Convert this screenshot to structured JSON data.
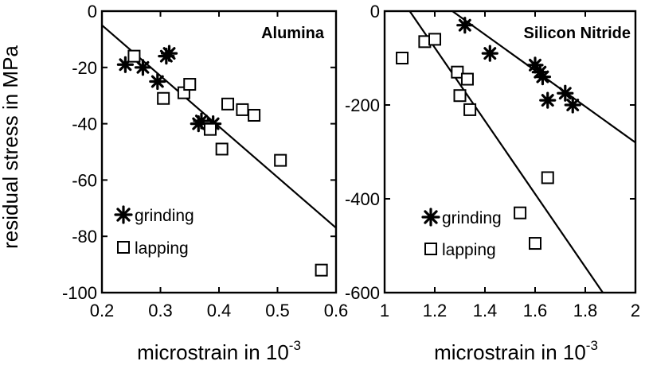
{
  "figure": {
    "ylabel": "residual stress in MPa",
    "xlabel_main": "microstrain in 10",
    "xlabel_exp": "-3"
  },
  "chart_data": [
    {
      "type": "scatter",
      "title": "Alumina",
      "xlabel": "microstrain in 10^-3",
      "ylabel": "residual stress in MPa",
      "xlim": [
        0.2,
        0.6
      ],
      "ylim": [
        -100,
        0
      ],
      "xticks": [
        "0.2",
        "0.3",
        "0.4",
        "0.5",
        "0.6"
      ],
      "yticks": [
        "0",
        "-20",
        "-40",
        "-60",
        "-80",
        "-100"
      ],
      "grid": false,
      "legend_position": "bottom-left",
      "series": [
        {
          "name": "grinding",
          "marker": "asterisk",
          "points": [
            [
              0.24,
              -19
            ],
            [
              0.27,
              -20
            ],
            [
              0.295,
              -25
            ],
            [
              0.31,
              -16
            ],
            [
              0.315,
              -15
            ],
            [
              0.365,
              -40
            ],
            [
              0.37,
              -39
            ],
            [
              0.39,
              -40
            ]
          ]
        },
        {
          "name": "lapping",
          "marker": "open-square",
          "points": [
            [
              0.255,
              -16
            ],
            [
              0.305,
              -31
            ],
            [
              0.34,
              -29
            ],
            [
              0.35,
              -26
            ],
            [
              0.385,
              -42
            ],
            [
              0.405,
              -49
            ],
            [
              0.415,
              -33
            ],
            [
              0.44,
              -35
            ],
            [
              0.46,
              -37
            ],
            [
              0.505,
              -53
            ],
            [
              0.575,
              -92
            ]
          ]
        }
      ],
      "fit_line": [
        [
          0.2,
          -5
        ],
        [
          0.6,
          -77
        ]
      ]
    },
    {
      "type": "scatter",
      "title": "Silicon Nitride",
      "xlabel": "microstrain in 10^-3",
      "ylabel": "residual stress in MPa",
      "xlim": [
        1,
        2
      ],
      "ylim": [
        -600,
        0
      ],
      "xticks": [
        "1",
        "1.2",
        "1.4",
        "1.6",
        "1.8",
        "2"
      ],
      "yticks": [
        "0",
        "-200",
        "-400",
        "-600"
      ],
      "grid": false,
      "legend_position": "bottom-left",
      "series": [
        {
          "name": "grinding",
          "marker": "asterisk",
          "points": [
            [
              1.32,
              -30
            ],
            [
              1.42,
              -90
            ],
            [
              1.6,
              -115
            ],
            [
              1.62,
              -130
            ],
            [
              1.63,
              -140
            ],
            [
              1.65,
              -190
            ],
            [
              1.72,
              -175
            ],
            [
              1.75,
              -200
            ]
          ]
        },
        {
          "name": "lapping",
          "marker": "open-square",
          "points": [
            [
              1.07,
              -100
            ],
            [
              1.16,
              -65
            ],
            [
              1.2,
              -60
            ],
            [
              1.29,
              -130
            ],
            [
              1.3,
              -180
            ],
            [
              1.33,
              -145
            ],
            [
              1.34,
              -210
            ],
            [
              1.54,
              -430
            ],
            [
              1.6,
              -495
            ],
            [
              1.65,
              -355
            ]
          ]
        }
      ],
      "fit_lines": [
        [
          [
            1.1,
            0
          ],
          [
            1.87,
            -600
          ]
        ],
        [
          [
            1.27,
            0
          ],
          [
            2.0,
            -280
          ]
        ]
      ]
    }
  ]
}
